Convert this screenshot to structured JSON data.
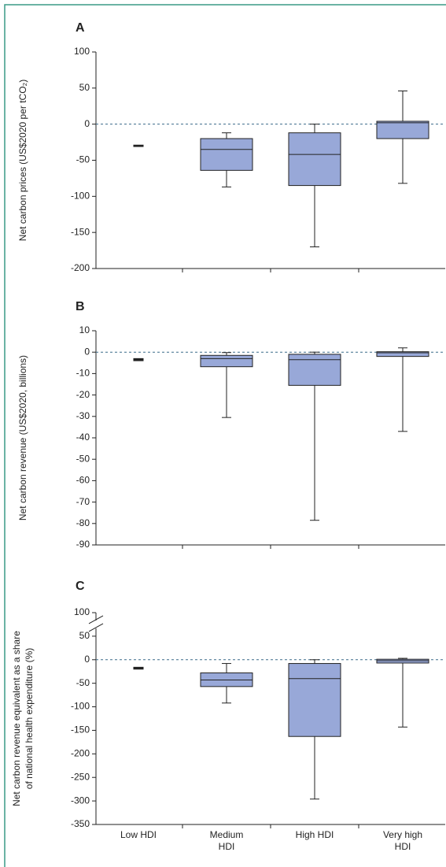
{
  "chart_data": [
    {
      "type": "box",
      "title": "A",
      "ylabel": [
        "Net carbon prices (US$2020 per tCO₂)"
      ],
      "ylim": [
        -200,
        100
      ],
      "yticks": [
        -200,
        -150,
        -100,
        -50,
        0,
        50,
        100
      ],
      "refline": 0,
      "color": "#98a8d8",
      "stats": {
        "min": [
          null,
          -87,
          -170,
          -82
        ],
        "q1": [
          -31,
          -64,
          -85,
          -20
        ],
        "median": [
          -30,
          -35,
          -42,
          2
        ],
        "q3": [
          -29,
          -20,
          -12,
          4
        ],
        "max": [
          null,
          -12,
          0,
          46
        ]
      }
    },
    {
      "type": "box",
      "title": "B",
      "ylabel": [
        "Net carbon revenue (US$2020, billions)"
      ],
      "ylim": [
        -90,
        10
      ],
      "yticks": [
        -90,
        -80,
        -70,
        -60,
        -50,
        -40,
        -30,
        -20,
        -10,
        0,
        10
      ],
      "refline": 0,
      "color": "#98a8d8",
      "stats": {
        "min": [
          null,
          -30.5,
          -78.5,
          -37
        ],
        "q1": [
          -4,
          -6.8,
          -15.5,
          -2
        ],
        "median": [
          -3.5,
          -3,
          -3.5,
          -0.3
        ],
        "q3": [
          -3,
          -1.5,
          -1,
          0.2
        ],
        "max": [
          null,
          -0.2,
          0,
          2
        ]
      }
    },
    {
      "type": "box",
      "title": "C",
      "ylabel": [
        "Net carbon revenue equivalent as a share",
        "of national health expenditure (%)"
      ],
      "ylim": [
        -350,
        100
      ],
      "yticks": [
        -350,
        -300,
        -250,
        -200,
        -150,
        -100,
        -50,
        0,
        50,
        100
      ],
      "axis_break": true,
      "refline": 0,
      "color": "#98a8d8",
      "categories": [
        "Low HDI",
        "Medium HDI",
        "High HDI",
        "Very high HDI"
      ],
      "stats": {
        "min": [
          null,
          -92,
          -296,
          -143
        ],
        "q1": [
          -20,
          -57,
          -163,
          -7
        ],
        "median": [
          -18,
          -43,
          -40,
          -2
        ],
        "q3": [
          -16,
          -28,
          -8,
          1
        ],
        "max": [
          null,
          -8,
          0,
          3
        ]
      }
    }
  ]
}
